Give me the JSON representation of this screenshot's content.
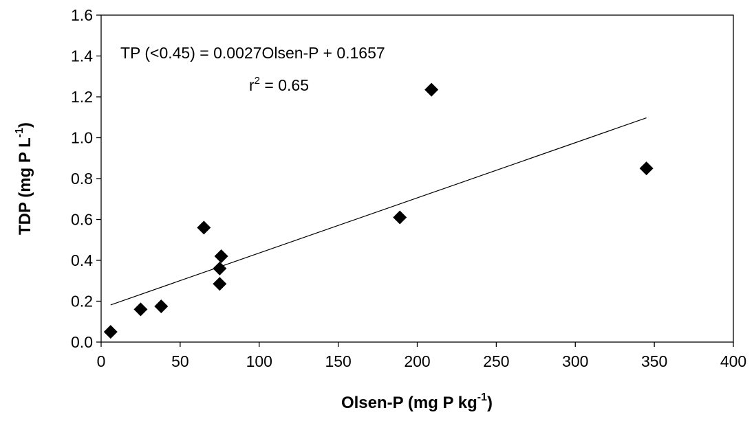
{
  "chart_data": {
    "type": "scatter",
    "xlabel": {
      "main": "Olsen-P (mg P kg",
      "sup": "-1",
      "close": ")"
    },
    "ylabel": {
      "main": "TDP (mg P L",
      "sup": "-1",
      "close": ")"
    },
    "xlim": [
      0,
      400
    ],
    "ylim": [
      0,
      1.6
    ],
    "x_ticks": [
      0,
      50,
      100,
      150,
      200,
      250,
      300,
      350,
      400
    ],
    "x_tick_labels": [
      "0",
      "50",
      "100",
      "150",
      "200",
      "250",
      "300",
      "350",
      "400"
    ],
    "y_ticks": [
      0,
      0.2,
      0.4,
      0.6,
      0.8,
      1.0,
      1.2,
      1.4,
      1.6
    ],
    "y_tick_labels": [
      "0.0",
      "0.2",
      "0.4",
      "0.6",
      "0.8",
      "1.0",
      "1.2",
      "1.4",
      "1.6"
    ],
    "grid": false,
    "marker": "diamond",
    "marker_color": "#000000",
    "series": [
      {
        "x": [
          6,
          25,
          38,
          65,
          75,
          75,
          76,
          189,
          209,
          345
        ],
        "y": [
          0.05,
          0.16,
          0.175,
          0.56,
          0.285,
          0.36,
          0.42,
          0.61,
          1.235,
          0.85
        ]
      }
    ],
    "trendline": {
      "slope": 0.0027,
      "intercept": 0.1657,
      "x_range": [
        6,
        345
      ]
    },
    "annotations": {
      "equation": "TP (<0.45) = 0.0027Olsen-P + 0.1657",
      "r2_prefix": "r",
      "r2_sup": "2",
      "r2_value": " = 0.65"
    }
  }
}
